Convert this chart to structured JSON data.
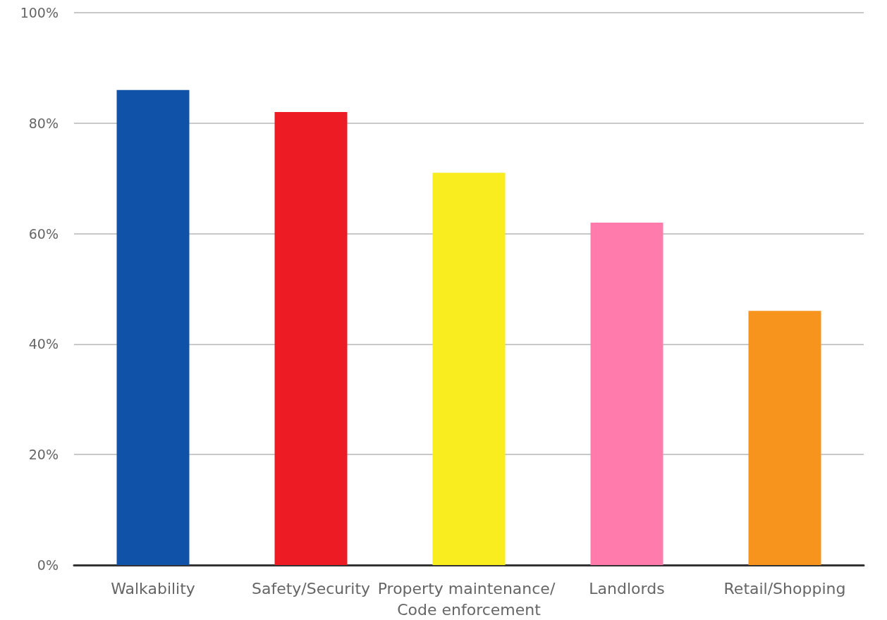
{
  "chart_data": {
    "type": "bar",
    "categories": [
      "Walkability",
      "Safety/Security",
      "Property maintenance/ Code enforcement",
      "Landlords",
      "Retail/Shopping"
    ],
    "values": [
      86,
      82,
      71,
      62,
      46
    ],
    "colors": [
      "#0f52a8",
      "#ed1c24",
      "#f9ec1f",
      "#ff7bac",
      "#f7941d"
    ],
    "ylim": [
      0,
      100
    ],
    "yticks": [
      {
        "value": 0,
        "label": "0%"
      },
      {
        "value": 20,
        "label": "20%"
      },
      {
        "value": 40,
        "label": "40%"
      },
      {
        "value": 60,
        "label": "60%"
      },
      {
        "value": 80,
        "label": "80%"
      },
      {
        "value": 100,
        "label": "100%"
      }
    ],
    "grid": "y"
  }
}
